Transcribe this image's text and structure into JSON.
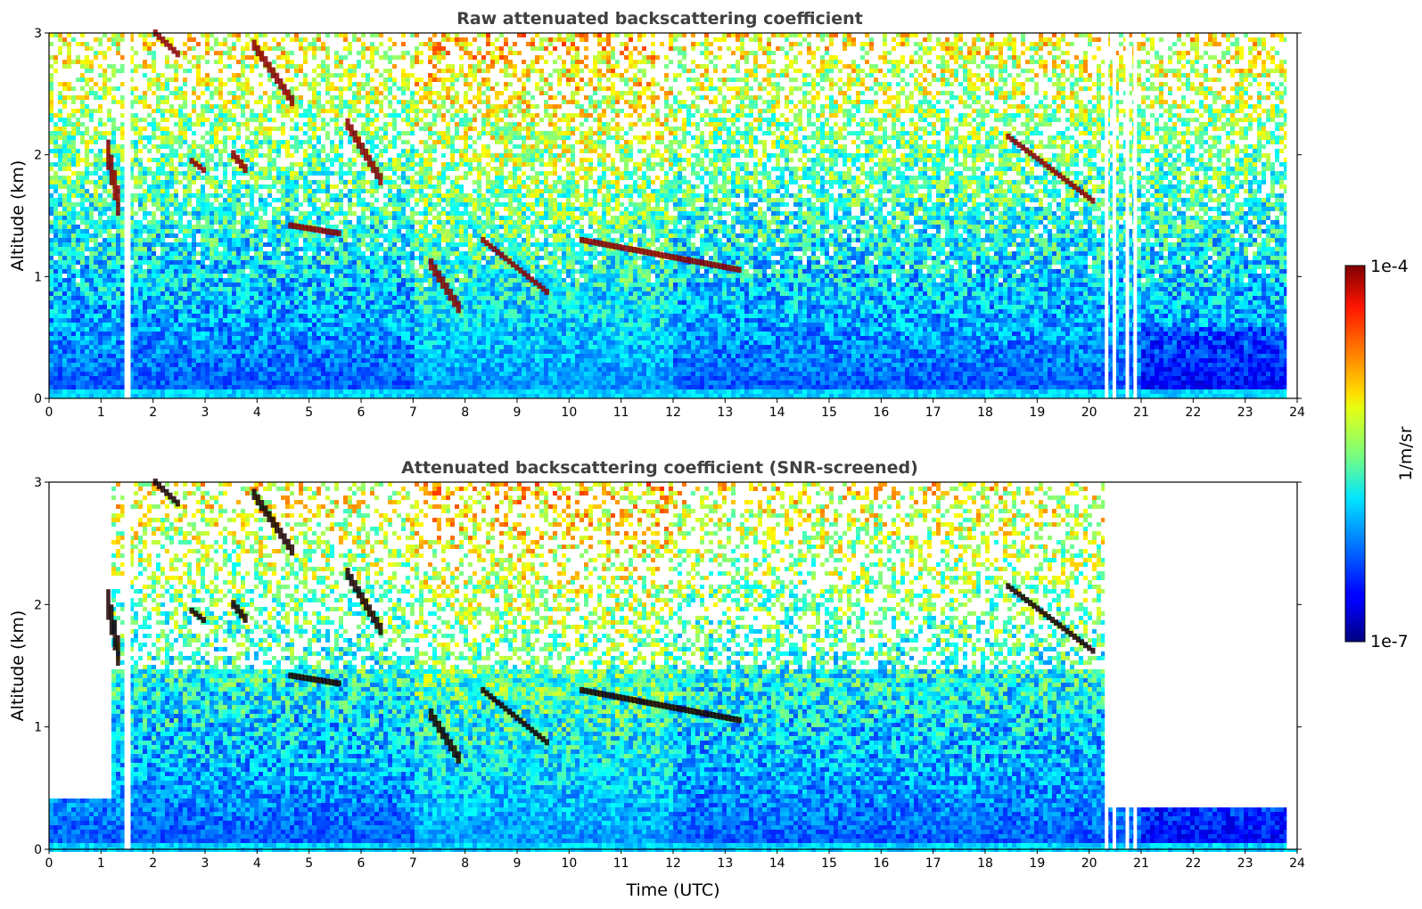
{
  "chart_data": [
    {
      "type": "heatmap",
      "title": "Raw attenuated backscattering coefficient",
      "xlabel": "",
      "ylabel": "Altitude (km)",
      "xlim": [
        0,
        24
      ],
      "ylim": [
        0,
        3
      ],
      "x_ticks": [
        "0",
        "1",
        "2",
        "3",
        "4",
        "5",
        "6",
        "7",
        "8",
        "9",
        "10",
        "11",
        "12",
        "13",
        "14",
        "15",
        "16",
        "17",
        "18",
        "19",
        "20",
        "21",
        "22",
        "23",
        "24"
      ],
      "y_ticks": [
        "0",
        "1",
        "2",
        "3"
      ],
      "screened": false,
      "cloud_layers": [
        {
          "t": [
            1.1,
            1.35
          ],
          "alt": [
            1.5,
            2.0
          ]
        },
        {
          "t": [
            2.0,
            2.5
          ],
          "alt": [
            2.8,
            3.0
          ]
        },
        {
          "t": [
            2.7,
            3.0
          ],
          "alt": [
            1.85,
            1.95
          ]
        },
        {
          "t": [
            3.5,
            3.8
          ],
          "alt": [
            1.85,
            2.0
          ]
        },
        {
          "t": [
            3.9,
            4.7
          ],
          "alt": [
            2.4,
            2.9
          ]
        },
        {
          "t": [
            4.6,
            5.6
          ],
          "alt": [
            1.35,
            1.42
          ]
        },
        {
          "t": [
            5.7,
            6.4
          ],
          "alt": [
            1.75,
            2.25
          ]
        },
        {
          "t": [
            7.3,
            7.9
          ],
          "alt": [
            0.7,
            1.1
          ]
        },
        {
          "t": [
            8.3,
            9.6
          ],
          "alt": [
            0.85,
            1.3
          ]
        },
        {
          "t": [
            10.2,
            13.3
          ],
          "alt": [
            1.05,
            1.3
          ]
        },
        {
          "t": [
            18.4,
            20.1
          ],
          "alt": [
            1.6,
            2.15
          ]
        }
      ]
    },
    {
      "type": "heatmap",
      "title": "Attenuated backscattering coefficient (SNR-screened)",
      "xlabel": "Time (UTC)",
      "ylabel": "Altitude (km)",
      "xlim": [
        0,
        24
      ],
      "ylim": [
        0,
        3
      ],
      "x_ticks": [
        "0",
        "1",
        "2",
        "3",
        "4",
        "5",
        "6",
        "7",
        "8",
        "9",
        "10",
        "11",
        "12",
        "13",
        "14",
        "15",
        "16",
        "17",
        "18",
        "19",
        "20",
        "21",
        "22",
        "23",
        "24"
      ],
      "y_ticks": [
        "0",
        "1",
        "2",
        "3"
      ],
      "screened": true,
      "cloud_layers": [
        {
          "t": [
            1.1,
            1.35
          ],
          "alt": [
            1.5,
            2.0
          ]
        },
        {
          "t": [
            2.0,
            2.5
          ],
          "alt": [
            2.8,
            3.0
          ]
        },
        {
          "t": [
            2.7,
            3.0
          ],
          "alt": [
            1.85,
            1.95
          ]
        },
        {
          "t": [
            3.5,
            3.8
          ],
          "alt": [
            1.85,
            2.0
          ]
        },
        {
          "t": [
            3.9,
            4.7
          ],
          "alt": [
            2.4,
            2.9
          ]
        },
        {
          "t": [
            4.6,
            5.6
          ],
          "alt": [
            1.35,
            1.42
          ]
        },
        {
          "t": [
            5.7,
            6.4
          ],
          "alt": [
            1.75,
            2.25
          ]
        },
        {
          "t": [
            7.3,
            7.9
          ],
          "alt": [
            0.7,
            1.1
          ]
        },
        {
          "t": [
            8.3,
            9.6
          ],
          "alt": [
            0.85,
            1.3
          ]
        },
        {
          "t": [
            10.2,
            13.3
          ],
          "alt": [
            1.05,
            1.3
          ]
        },
        {
          "t": [
            18.4,
            20.1
          ],
          "alt": [
            1.6,
            2.15
          ]
        }
      ]
    }
  ],
  "colorbar": {
    "max_label": "1e-4",
    "min_label": "1e-7",
    "unit_label": "1/m/sr",
    "colormap": "jet"
  }
}
